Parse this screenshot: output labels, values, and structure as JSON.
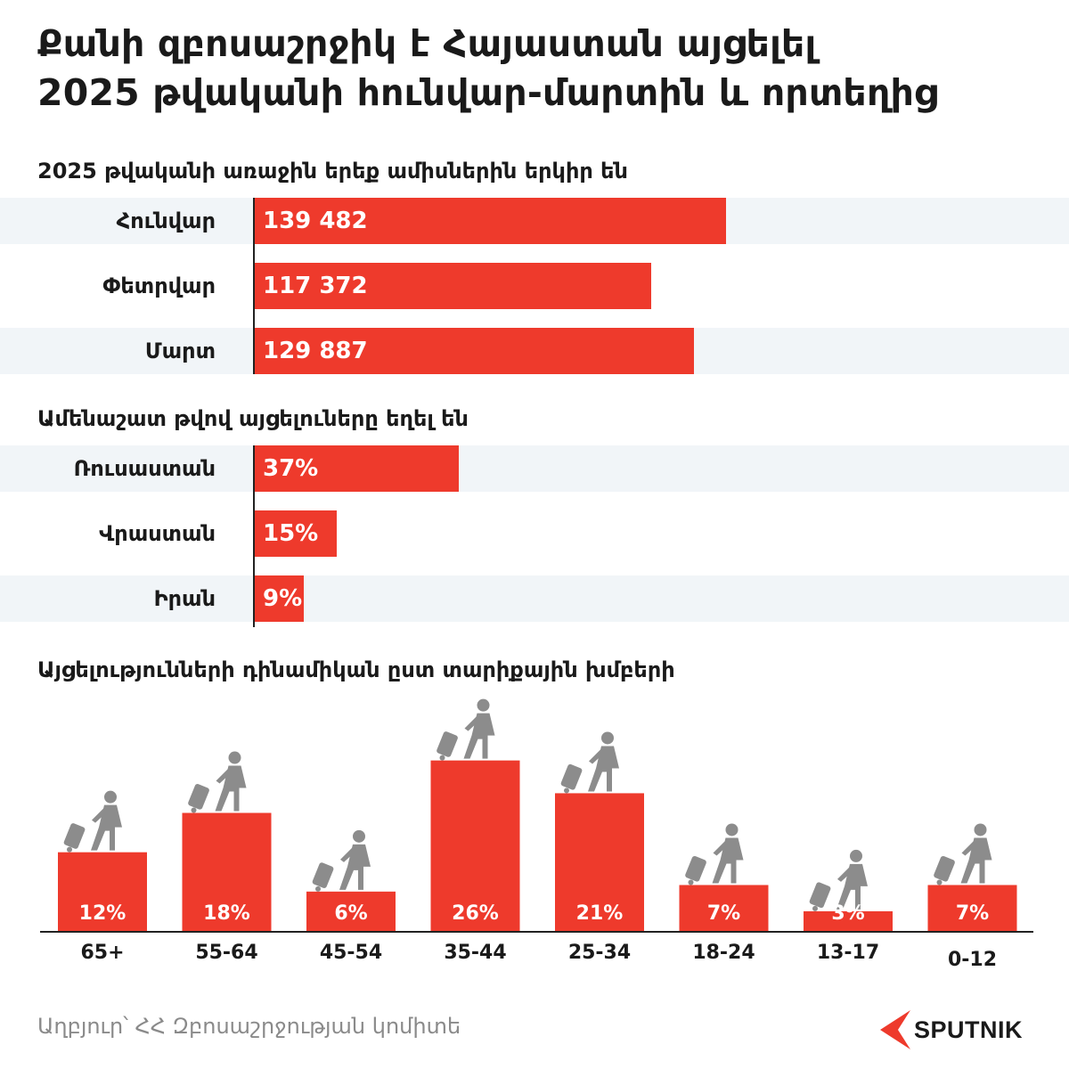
{
  "title_line1": "Քանի զբոսաշրջիկ է Հայաստան այցելել",
  "title_line2": "2025 թվականի հունվար-մարտին և որտեղից",
  "monthly": {
    "title": "2025 թվականի առաջին երեք ամիսներին երկիր են",
    "rows": [
      {
        "label": "Հունվար",
        "value": 139482,
        "value_label": "139 482"
      },
      {
        "label": "Փետրվար",
        "value": 117372,
        "value_label": "117 372"
      },
      {
        "label": "Մարտ",
        "value": 129887,
        "value_label": "129 887"
      }
    ]
  },
  "countries": {
    "title": "Ամենաշատ թվով այցելուները եղել են",
    "rows": [
      {
        "label": "Ռուսաստան",
        "value": 37,
        "value_label": "37%"
      },
      {
        "label": "Վրաստան",
        "value": 15,
        "value_label": "15%"
      },
      {
        "label": "Իրան",
        "value": 9,
        "value_label": "9%"
      }
    ]
  },
  "age": {
    "title": "Այցելությունների դինամիկան ըստ տարիքային խմբերի"
  },
  "chart_data": [
    {
      "type": "bar",
      "orientation": "horizontal",
      "title": "2025 թվականի առաջին երեք ամիսներին երկիր են",
      "categories": [
        "Հունվար",
        "Փետրվար",
        "Մարտ"
      ],
      "values": [
        139482,
        117372,
        129887
      ],
      "value_labels": [
        "139 482",
        "117 372",
        "129 887"
      ],
      "xlim": [
        0,
        260000
      ]
    },
    {
      "type": "bar",
      "orientation": "horizontal",
      "title": "Ամենաշատ թվով այցելուները եղել են",
      "categories": [
        "Ռուսաստան",
        "Վրաստան",
        "Իրան"
      ],
      "values": [
        37,
        15,
        9
      ],
      "value_labels": [
        "37%",
        "15%",
        "9%"
      ],
      "unit": "%"
    },
    {
      "type": "bar",
      "title": "Այցելությունների դինամիկան ըստ տարիքային խմբերի",
      "categories": [
        "65+",
        "55-64",
        "45-54",
        "35-44",
        "25-34",
        "18-24",
        "13-17",
        "0-12"
      ],
      "values": [
        12,
        18,
        6,
        26,
        21,
        7,
        3,
        7
      ],
      "value_labels": [
        "12%",
        "18%",
        "6%",
        "26%",
        "21%",
        "7%",
        "3%",
        "7%"
      ],
      "unit": "%",
      "icon": "traveler-with-suitcase-icon"
    }
  ],
  "colors": {
    "bar": "#ee3a2c",
    "row_shade": "#f1f5f8",
    "icon": "#8c8c8c",
    "text": "#1a1a1a",
    "source": "#8a8a8a"
  },
  "source": "Աղբյուր՝ ՀՀ Զբոսաշրջության կոմիտե",
  "brand": "SPUTNIK"
}
